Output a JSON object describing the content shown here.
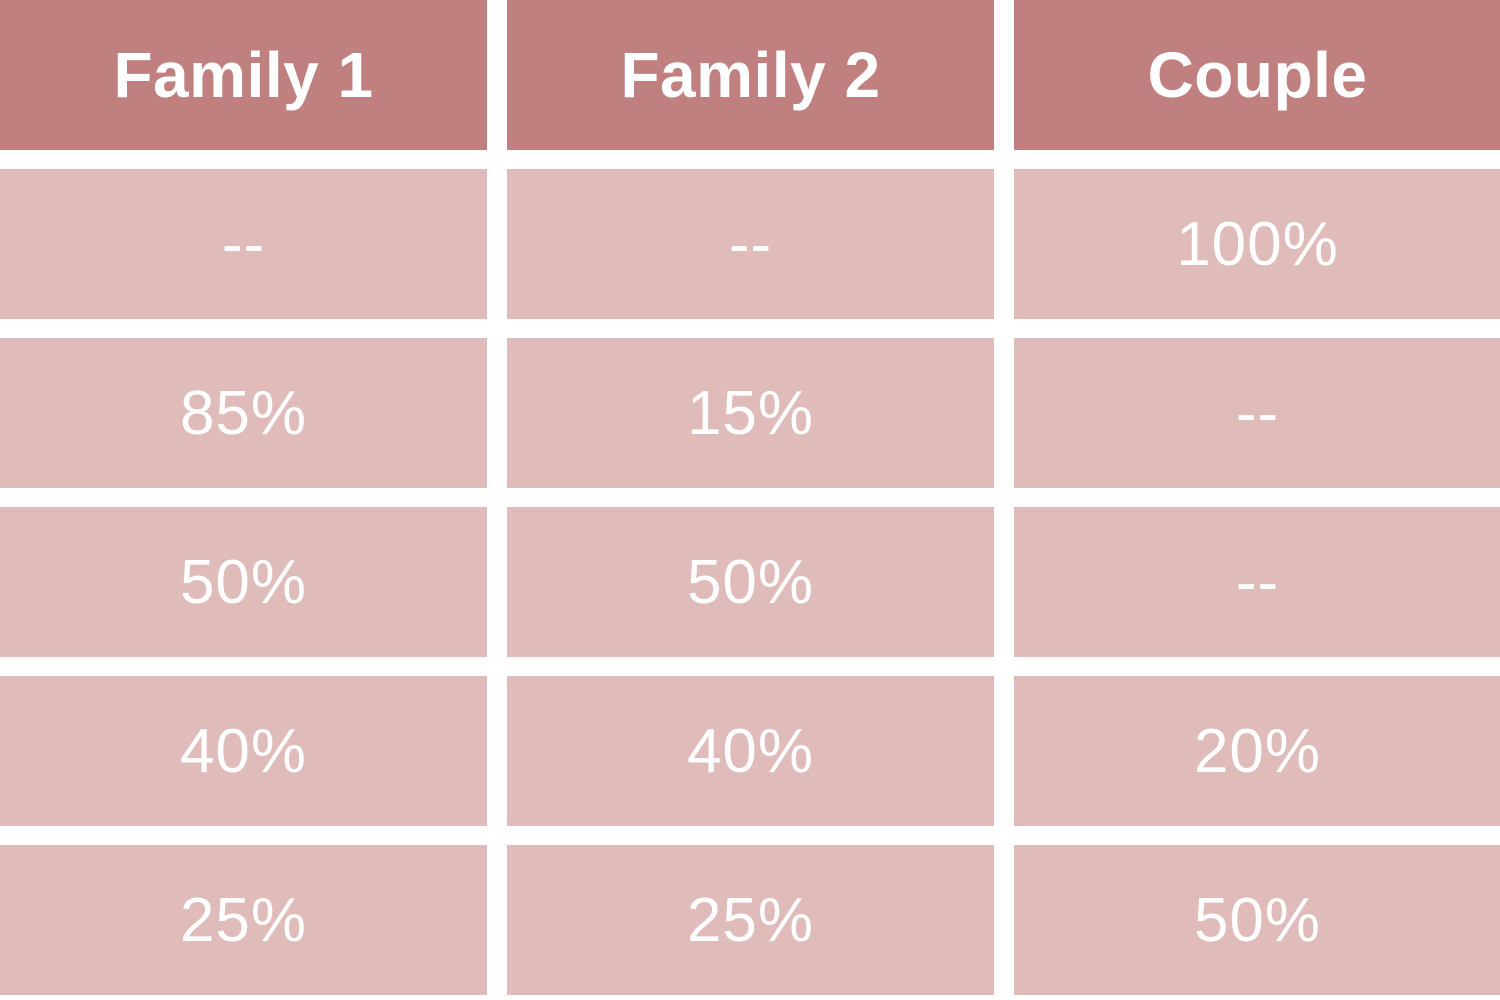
{
  "chart_data": {
    "type": "table",
    "columns": [
      "Family 1",
      "Family 2",
      "Couple"
    ],
    "rows": [
      [
        "--",
        "--",
        "100%"
      ],
      [
        "85%",
        "15%",
        "--"
      ],
      [
        "50%",
        "50%",
        "--"
      ],
      [
        "40%",
        "40%",
        "20%"
      ],
      [
        "25%",
        "25%",
        "50%"
      ]
    ]
  },
  "colors": {
    "header_background": "#c08080",
    "cell_background": "#dfbcb9",
    "text": "#ffffff",
    "gutter": "#ffffff"
  }
}
